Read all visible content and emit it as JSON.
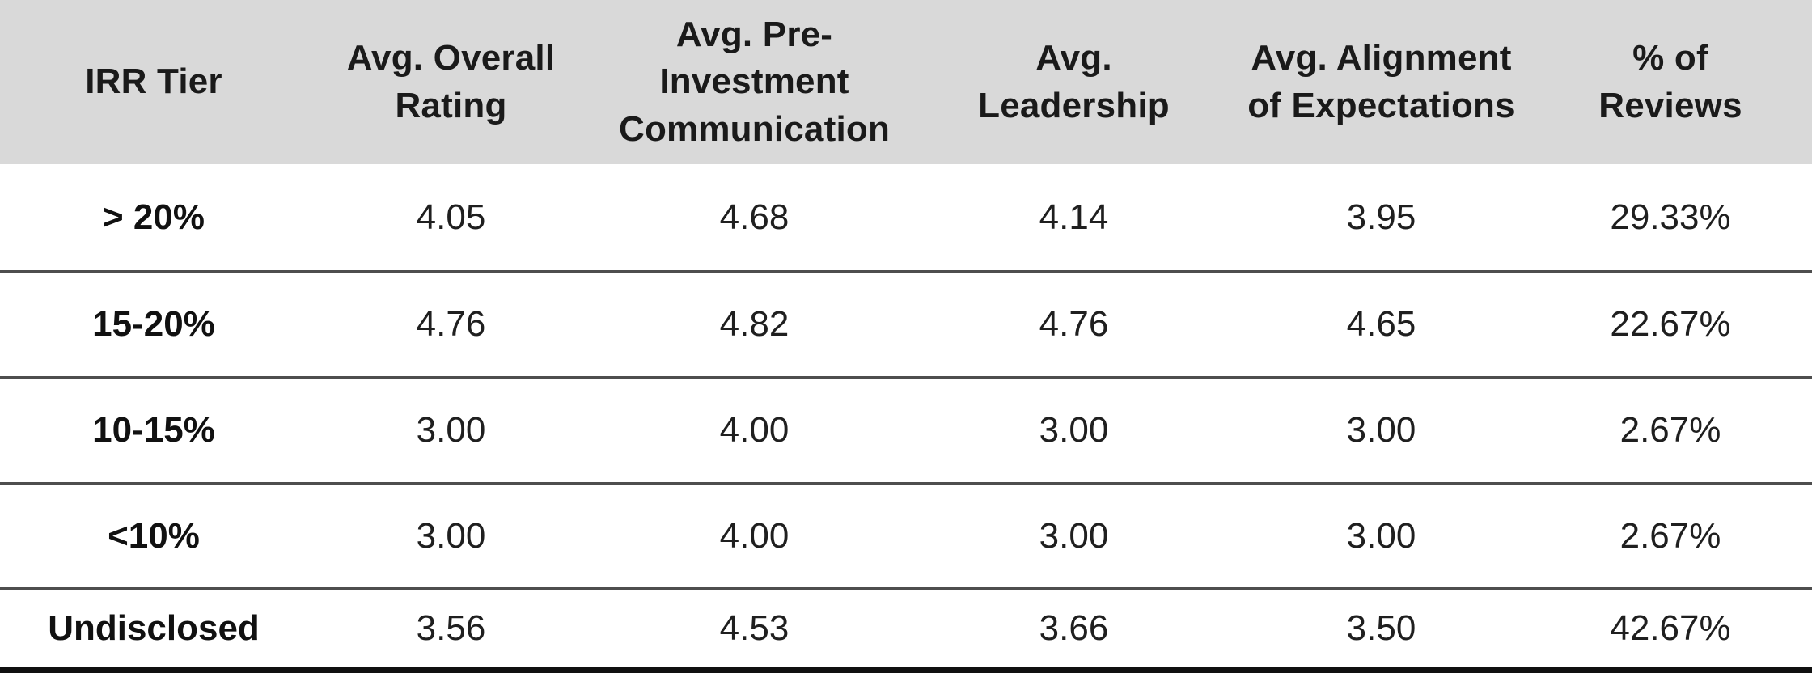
{
  "colors": {
    "header_background": "#d9d9d9",
    "header_text": "#1a1a1a",
    "body_text": "#1f1f1f",
    "row_label_text": "#111111",
    "row_divider": "#4e4e4e",
    "bottom_border": "#101010",
    "page_background": "#ffffff"
  },
  "table": {
    "columns": [
      {
        "label": "IRR Tier",
        "display": "IRR Tier"
      },
      {
        "label": "Avg. Overall Rating",
        "display": "Avg. Overall\nRating"
      },
      {
        "label": "Avg. Pre-Investment Communication",
        "display": "Avg. Pre-\nInvestment\nCommunication"
      },
      {
        "label": "Avg. Leadership",
        "display": "Avg.\nLeadership"
      },
      {
        "label": "Avg. Alignment of Expectations",
        "display": "Avg. Alignment\nof Expectations"
      },
      {
        "label": "% of Reviews",
        "display": "% of\nReviews"
      }
    ]
  },
  "chart_data": {
    "type": "table",
    "title": "",
    "columns": [
      "IRR Tier",
      "Avg. Overall Rating",
      "Avg. Pre-Investment Communication",
      "Avg. Leadership",
      "Avg. Alignment of Expectations",
      "% of Reviews"
    ],
    "rows": [
      [
        "> 20%",
        "4.05",
        "4.68",
        "4.14",
        "3.95",
        "29.33%"
      ],
      [
        "15-20%",
        "4.76",
        "4.82",
        "4.76",
        "4.65",
        "22.67%"
      ],
      [
        "10-15%",
        "3.00",
        "4.00",
        "3.00",
        "3.00",
        "2.67%"
      ],
      [
        "<10%",
        "3.00",
        "4.00",
        "3.00",
        "3.00",
        "2.67%"
      ],
      [
        "Undisclosed",
        "3.56",
        "4.53",
        "3.66",
        "3.50",
        "42.67%"
      ]
    ]
  }
}
